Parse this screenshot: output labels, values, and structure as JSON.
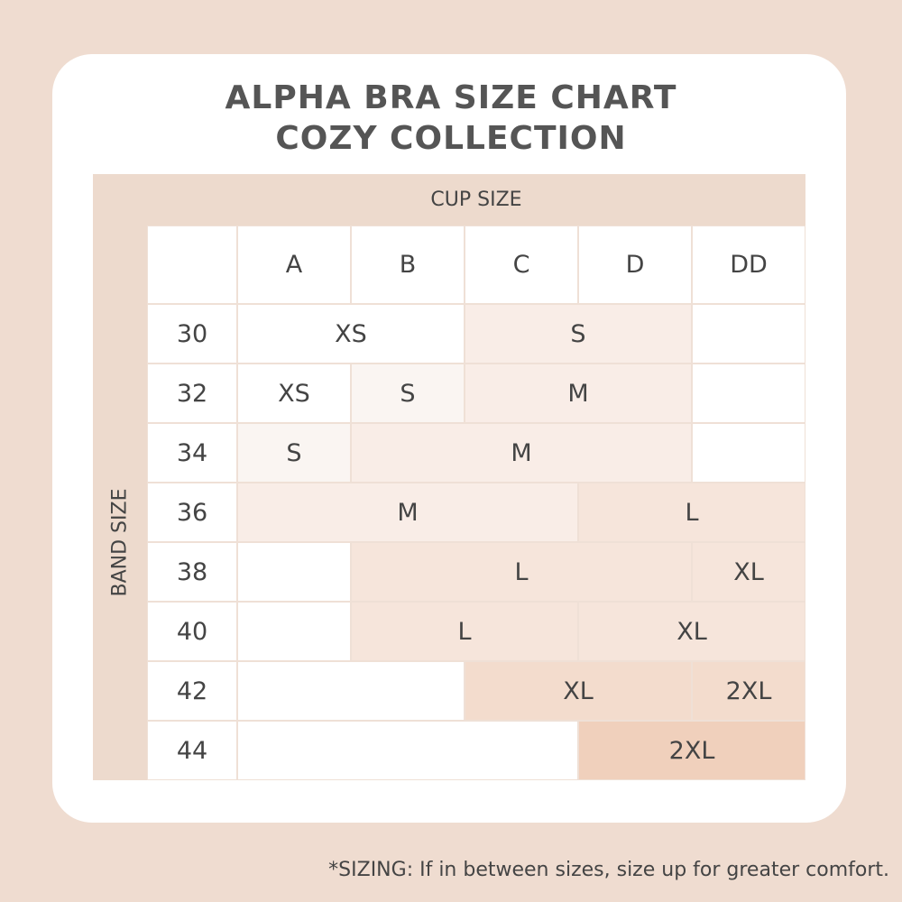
{
  "header": {
    "title_line1": "ALPHA BRA SIZE CHART",
    "title_line2": "COZY COLLECTION"
  },
  "table": {
    "cup_label": "CUP SIZE",
    "band_label": "BAND SIZE",
    "cups": [
      "A",
      "B",
      "C",
      "D",
      "DD"
    ],
    "rows": [
      {
        "band": "30",
        "sizes": [
          "XS",
          "S",
          null
        ]
      },
      {
        "band": "32",
        "sizes": [
          "XS",
          "S",
          "M",
          null
        ]
      },
      {
        "band": "34",
        "sizes": [
          "S",
          "M",
          null
        ]
      },
      {
        "band": "36",
        "sizes": [
          "M",
          "L"
        ]
      },
      {
        "band": "38",
        "sizes": [
          null,
          "L",
          "XL"
        ]
      },
      {
        "band": "40",
        "sizes": [
          null,
          "L",
          "XL"
        ]
      },
      {
        "band": "42",
        "sizes": [
          null,
          "XL",
          "2XL"
        ]
      },
      {
        "band": "44",
        "sizes": [
          null,
          "2XL"
        ]
      }
    ]
  },
  "footnote": "*SIZING: If in between sizes, size up for greater comfort."
}
